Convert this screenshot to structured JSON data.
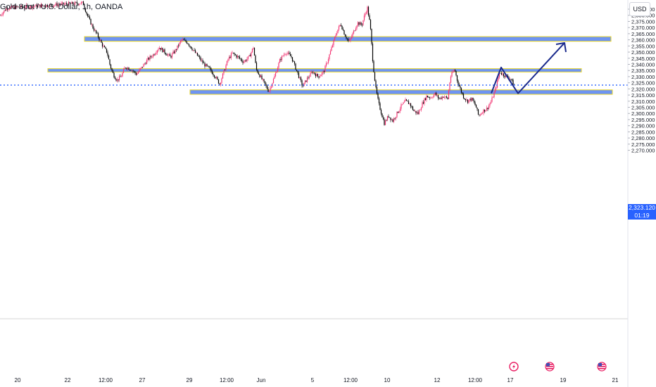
{
  "header": {
    "title": "Gold Spot / U.S. Dollar, 1h, OANDA",
    "currency_button": "USD"
  },
  "price_marker": {
    "price": "2,323.120",
    "countdown": "01:19",
    "color": "#2962ff"
  },
  "colors": {
    "up_candle": "#f23673",
    "down_candle": "#000000",
    "zone_fill": "#6e94f2",
    "zone_border": "#e8d52a",
    "arrow": "#1a2a8c",
    "price_line": "#2962ff"
  },
  "x_axis": {
    "labels": [
      "20",
      "22",
      "12:00",
      "27",
      "29",
      "12:00",
      "Jun",
      "5",
      "12:00",
      "10",
      "12",
      "12:00",
      "17",
      "19",
      "21"
    ]
  },
  "event_icons": [
    "lightning-icon",
    "us-flag-icon",
    "us-flag-icon"
  ],
  "chart_data": {
    "type": "candlestick",
    "title": "Gold Spot / U.S. Dollar, 1h, OANDA",
    "y_unit": "USD",
    "ylim": [
      2267.5,
      2389
    ],
    "y_ticks": [
      2385,
      2380,
      2375,
      2370,
      2365,
      2360,
      2355,
      2350,
      2345,
      2340,
      2335,
      2330,
      2325,
      2320,
      2315,
      2310,
      2305,
      2300,
      2295,
      2290,
      2285,
      2280,
      2275,
      2270
    ],
    "y_tick_labels": [
      "2,385.000",
      "2,380.000",
      "2,375.000",
      "2,370.000",
      "2,365.000",
      "2,360.000",
      "2,355.000",
      "2,350.000",
      "2,345.000",
      "2,340.000",
      "2,335.000",
      "2,330.000",
      "2,325.000",
      "2,320.000",
      "2,315.000",
      "2,310.000",
      "2,305.000",
      "2,300.000",
      "2,295.000",
      "2,290.000",
      "2,285.000",
      "2,280.000",
      "2,275.000",
      "2,270.000"
    ],
    "x_tick_labels": [
      "20",
      "22",
      "12:00",
      "27",
      "29",
      "12:00",
      "Jun",
      "5",
      "12:00",
      "10",
      "12",
      "12:00",
      "17",
      "19",
      "21"
    ],
    "current_price": 2323.12,
    "price_path": [
      {
        "t": 0,
        "p": 2380
      },
      {
        "t": 10,
        "p": 2386
      },
      {
        "t": 118,
        "p": 2390
      },
      {
        "t": 124,
        "p": 2380
      },
      {
        "t": 132,
        "p": 2370
      },
      {
        "t": 140,
        "p": 2362
      },
      {
        "t": 146,
        "p": 2355
      },
      {
        "t": 152,
        "p": 2350
      },
      {
        "t": 156,
        "p": 2340
      },
      {
        "t": 160,
        "p": 2333
      },
      {
        "t": 166,
        "p": 2327
      },
      {
        "t": 172,
        "p": 2330
      },
      {
        "t": 178,
        "p": 2338
      },
      {
        "t": 186,
        "p": 2336
      },
      {
        "t": 194,
        "p": 2332
      },
      {
        "t": 202,
        "p": 2338
      },
      {
        "t": 210,
        "p": 2344
      },
      {
        "t": 218,
        "p": 2348
      },
      {
        "t": 226,
        "p": 2354
      },
      {
        "t": 234,
        "p": 2350
      },
      {
        "t": 242,
        "p": 2346
      },
      {
        "t": 250,
        "p": 2352
      },
      {
        "t": 258,
        "p": 2360
      },
      {
        "t": 266,
        "p": 2358
      },
      {
        "t": 274,
        "p": 2352
      },
      {
        "t": 282,
        "p": 2346
      },
      {
        "t": 290,
        "p": 2340
      },
      {
        "t": 298,
        "p": 2336
      },
      {
        "t": 306,
        "p": 2330
      },
      {
        "t": 312,
        "p": 2324
      },
      {
        "t": 318,
        "p": 2334
      },
      {
        "t": 324,
        "p": 2344
      },
      {
        "t": 330,
        "p": 2349
      },
      {
        "t": 338,
        "p": 2346
      },
      {
        "t": 346,
        "p": 2342
      },
      {
        "t": 354,
        "p": 2346
      },
      {
        "t": 360,
        "p": 2354
      },
      {
        "t": 364,
        "p": 2336
      },
      {
        "t": 370,
        "p": 2330
      },
      {
        "t": 376,
        "p": 2324
      },
      {
        "t": 382,
        "p": 2318
      },
      {
        "t": 390,
        "p": 2330
      },
      {
        "t": 398,
        "p": 2344
      },
      {
        "t": 406,
        "p": 2350
      },
      {
        "t": 414,
        "p": 2346
      },
      {
        "t": 422,
        "p": 2334
      },
      {
        "t": 430,
        "p": 2322
      },
      {
        "t": 436,
        "p": 2328
      },
      {
        "t": 444,
        "p": 2334
      },
      {
        "t": 452,
        "p": 2330
      },
      {
        "t": 460,
        "p": 2334
      },
      {
        "t": 466,
        "p": 2344
      },
      {
        "t": 472,
        "p": 2355
      },
      {
        "t": 478,
        "p": 2366
      },
      {
        "t": 484,
        "p": 2373
      },
      {
        "t": 490,
        "p": 2364
      },
      {
        "t": 496,
        "p": 2358
      },
      {
        "t": 502,
        "p": 2366
      },
      {
        "t": 508,
        "p": 2374
      },
      {
        "t": 514,
        "p": 2372
      },
      {
        "t": 518,
        "p": 2380
      },
      {
        "t": 522,
        "p": 2386
      },
      {
        "t": 526,
        "p": 2372
      },
      {
        "t": 530,
        "p": 2340
      },
      {
        "t": 534,
        "p": 2320
      },
      {
        "t": 538,
        "p": 2308
      },
      {
        "t": 542,
        "p": 2300
      },
      {
        "t": 546,
        "p": 2292
      },
      {
        "t": 552,
        "p": 2298
      },
      {
        "t": 558,
        "p": 2294
      },
      {
        "t": 564,
        "p": 2300
      },
      {
        "t": 570,
        "p": 2306
      },
      {
        "t": 576,
        "p": 2310
      },
      {
        "t": 582,
        "p": 2308
      },
      {
        "t": 588,
        "p": 2302
      },
      {
        "t": 594,
        "p": 2300
      },
      {
        "t": 600,
        "p": 2308
      },
      {
        "t": 606,
        "p": 2314
      },
      {
        "t": 612,
        "p": 2313
      },
      {
        "t": 618,
        "p": 2316
      },
      {
        "t": 624,
        "p": 2312
      },
      {
        "t": 630,
        "p": 2314
      },
      {
        "t": 636,
        "p": 2312
      },
      {
        "t": 640,
        "p": 2330
      },
      {
        "t": 646,
        "p": 2336
      },
      {
        "t": 650,
        "p": 2326
      },
      {
        "t": 654,
        "p": 2320
      },
      {
        "t": 658,
        "p": 2314
      },
      {
        "t": 664,
        "p": 2310
      },
      {
        "t": 670,
        "p": 2312
      },
      {
        "t": 676,
        "p": 2306
      },
      {
        "t": 680,
        "p": 2298
      },
      {
        "t": 686,
        "p": 2302
      },
      {
        "t": 692,
        "p": 2304
      },
      {
        "t": 698,
        "p": 2310
      },
      {
        "t": 704,
        "p": 2320
      },
      {
        "t": 710,
        "p": 2334
      },
      {
        "t": 714,
        "p": 2332
      },
      {
        "t": 720,
        "p": 2330
      },
      {
        "t": 726,
        "p": 2328
      },
      {
        "t": 730,
        "p": 2323
      }
    ],
    "zones": [
      {
        "from_t": 120,
        "to_t": 868,
        "low": 2358.8,
        "high": 2362.6
      },
      {
        "from_t": 68,
        "to_t": 826,
        "low": 2333.8,
        "high": 2336.5
      },
      {
        "from_t": 270,
        "to_t": 870,
        "low": 2315.6,
        "high": 2319.2
      }
    ],
    "projection": [
      {
        "t": 698,
        "p": 2316.5
      },
      {
        "t": 712,
        "p": 2337.5
      },
      {
        "t": 736,
        "p": 2316.4
      },
      {
        "t": 802,
        "p": 2357.5
      }
    ]
  }
}
